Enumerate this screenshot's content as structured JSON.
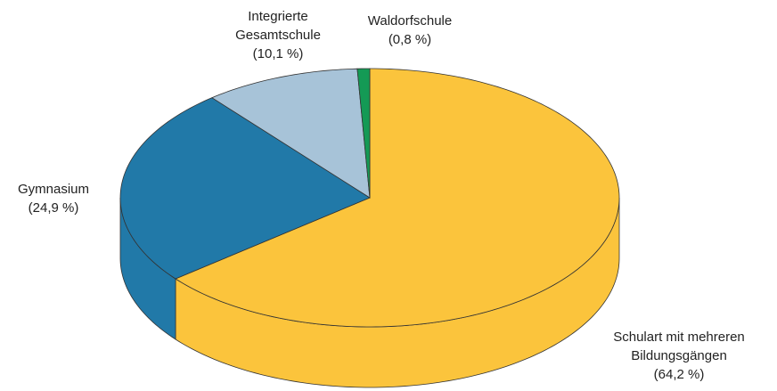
{
  "chart_data": {
    "type": "pie",
    "categories": [
      "Schulart mit mehreren Bildungsgängen",
      "Gymnasium",
      "Integrierte Gesamtschule",
      "Waldorfschule"
    ],
    "values": [
      64.2,
      24.9,
      10.1,
      0.8
    ],
    "value_labels": [
      "(64,2 %)",
      "(24,9 %)",
      "(10,1 %)",
      "(0,8 %)"
    ],
    "colors": [
      "#fbc43c",
      "#2179a8",
      "#a7c3d8",
      "#149a55"
    ]
  }
}
